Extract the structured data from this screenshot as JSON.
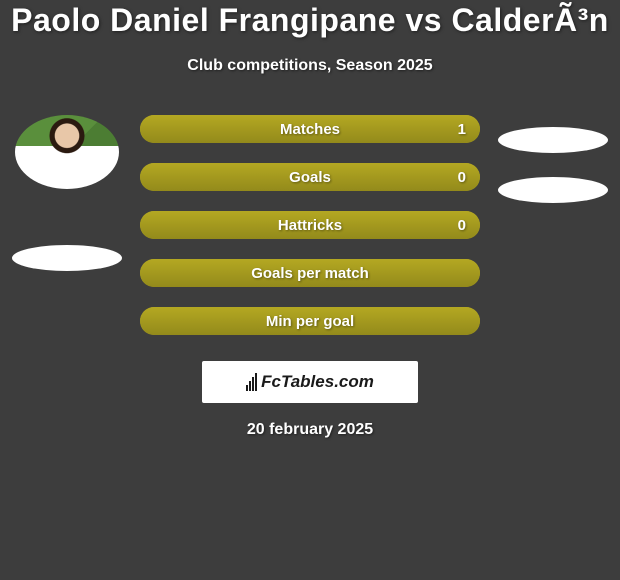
{
  "title": "Paolo Daniel Frangipane vs CalderÃ³n",
  "subtitle": "Club competitions, Season 2025",
  "date": "20 february 2025",
  "logo_text": "FcTables.com",
  "colors": {
    "background": "#3d3d3d",
    "bar": "#a89b1f",
    "pill": "#ffffff",
    "text": "#ffffff"
  },
  "stats": [
    {
      "label": "Matches",
      "value": "1",
      "has_value": true
    },
    {
      "label": "Goals",
      "value": "0",
      "has_value": true
    },
    {
      "label": "Hattricks",
      "value": "0",
      "has_value": true
    },
    {
      "label": "Goals per match",
      "value": "",
      "has_value": false
    },
    {
      "label": "Min per goal",
      "value": "",
      "has_value": false
    }
  ]
}
